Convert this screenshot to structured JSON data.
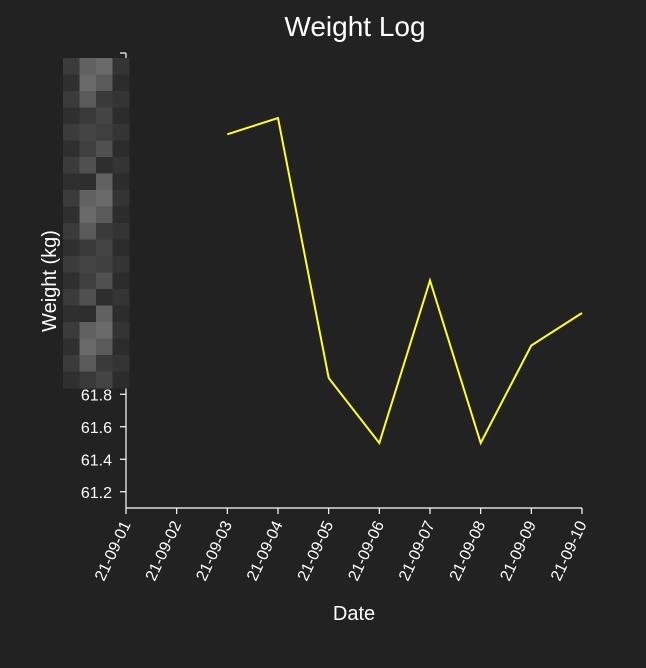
{
  "chart_data": {
    "type": "line",
    "title": "Weight Log",
    "xlabel": "Date",
    "ylabel": "Weight (kg)",
    "x": [
      "21-09-01",
      "21-09-02",
      "21-09-03",
      "21-09-04",
      "21-09-05",
      "21-09-06",
      "21-09-07",
      "21-09-08",
      "21-09-09",
      "21-09-10"
    ],
    "y_ticks": [
      "61.2",
      "61.4",
      "61.6",
      "61.8"
    ],
    "series": [
      {
        "x": [
          "21-09-03",
          "21-09-04",
          "21-09-05",
          "21-09-06",
          "21-09-07",
          "21-09-08",
          "21-09-09",
          "21-09-10"
        ],
        "values": [
          63.4,
          63.5,
          61.9,
          61.5,
          62.5,
          61.5,
          62.1,
          62.3
        ]
      }
    ],
    "ylim": [
      61.1,
      63.9
    ],
    "grid": false,
    "line_color": "#ffff22",
    "axis_color": "#ffffff",
    "background": "#222222"
  }
}
